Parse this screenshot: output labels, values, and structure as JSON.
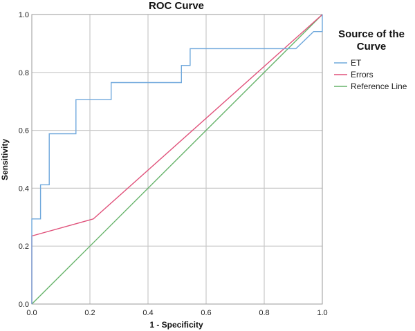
{
  "chart_data": {
    "type": "line",
    "title": "ROC Curve",
    "xlabel": "1 - Specificity",
    "ylabel": "Sensitivity",
    "xlim": [
      0.0,
      1.0
    ],
    "ylim": [
      0.0,
      1.0
    ],
    "x_ticks": [
      "0.0",
      "0.2",
      "0.4",
      "0.6",
      "0.8",
      "1.0"
    ],
    "y_ticks": [
      "0.0",
      "0.2",
      "0.4",
      "0.6",
      "0.8",
      "1.0"
    ],
    "grid": true,
    "legend": {
      "title_lines": [
        "Source of the",
        "Curve"
      ],
      "position": "right"
    },
    "series": [
      {
        "name": "ET",
        "color": "#6fa8dc",
        "step": true,
        "points": [
          [
            0.0,
            0.0
          ],
          [
            0.0,
            0.294
          ],
          [
            0.03,
            0.294
          ],
          [
            0.03,
            0.412
          ],
          [
            0.06,
            0.412
          ],
          [
            0.06,
            0.588
          ],
          [
            0.152,
            0.588
          ],
          [
            0.152,
            0.706
          ],
          [
            0.273,
            0.706
          ],
          [
            0.273,
            0.765
          ],
          [
            0.515,
            0.765
          ],
          [
            0.515,
            0.824
          ],
          [
            0.545,
            0.824
          ],
          [
            0.545,
            0.882
          ],
          [
            0.909,
            0.882
          ],
          [
            0.97,
            0.941
          ],
          [
            1.0,
            0.941
          ],
          [
            1.0,
            1.0
          ]
        ]
      },
      {
        "name": "Errors",
        "color": "#e0517a",
        "step": false,
        "points": [
          [
            0.0,
            0.0
          ],
          [
            0.0,
            0.235
          ],
          [
            0.212,
            0.294
          ],
          [
            1.0,
            1.0
          ]
        ]
      },
      {
        "name": "Reference Line",
        "color": "#66b36a",
        "step": false,
        "points": [
          [
            0.0,
            0.0
          ],
          [
            1.0,
            1.0
          ]
        ]
      }
    ]
  }
}
